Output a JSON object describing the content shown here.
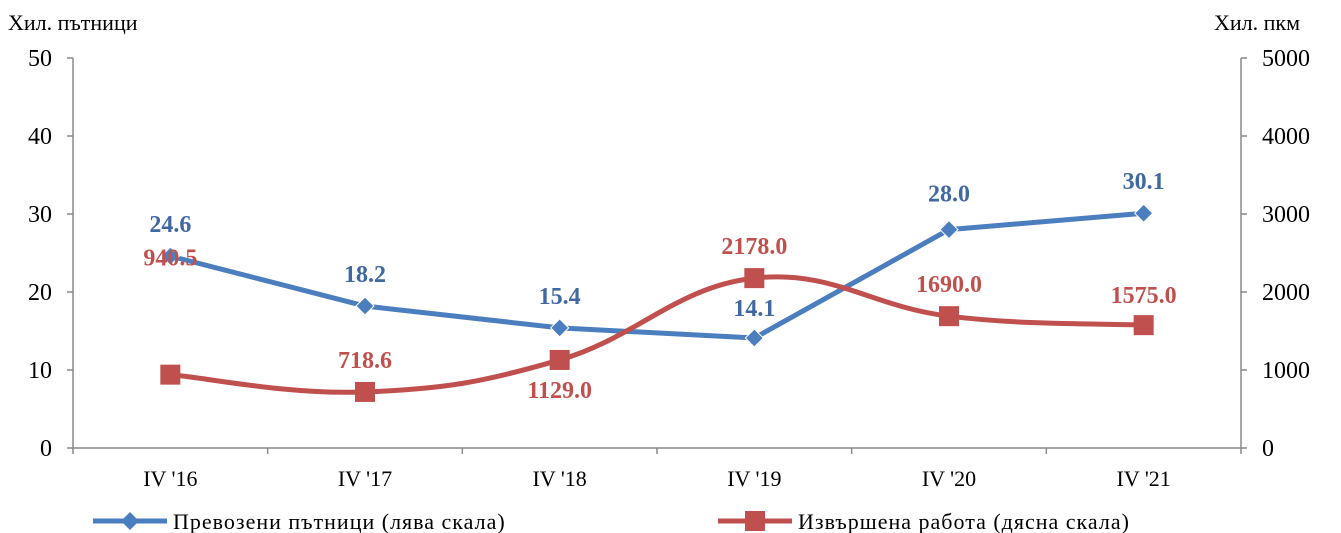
{
  "chart_data": {
    "type": "line",
    "categories": [
      "IV '16",
      "IV '17",
      "IV '18",
      "IV '19",
      "IV '20",
      "IV '21"
    ],
    "y_left": {
      "label": "Хил. пътници",
      "ticks": [
        "0",
        "10",
        "20",
        "30",
        "40",
        "50"
      ],
      "lim": [
        0,
        50
      ]
    },
    "y_right": {
      "label": "Хил. пкм",
      "ticks": [
        "0",
        "1000",
        "2000",
        "3000",
        "4000",
        "5000"
      ],
      "lim": [
        0,
        5000
      ]
    },
    "series": [
      {
        "name": "Превозени пътници  (лява скала)",
        "axis": "left",
        "color": "#4a7ebf",
        "marker": "diamond",
        "values": [
          24.6,
          18.2,
          15.4,
          14.1,
          28.0,
          30.1
        ],
        "labels": [
          "24.6",
          "18.2",
          "15.4",
          "14.1",
          "28.0",
          "30.1"
        ]
      },
      {
        "name": "Извършена работа (дясна скала)",
        "axis": "right",
        "color": "#c0504d",
        "marker": "square",
        "smooth": true,
        "values": [
          940.5,
          718.6,
          1129.0,
          2178.0,
          1690.0,
          1575.0
        ],
        "labels": [
          "940.5",
          "718.6",
          "1129.0",
          "2178.0",
          "1690.0",
          "1575.0"
        ]
      }
    ],
    "legend": "bottom",
    "grid": false
  }
}
